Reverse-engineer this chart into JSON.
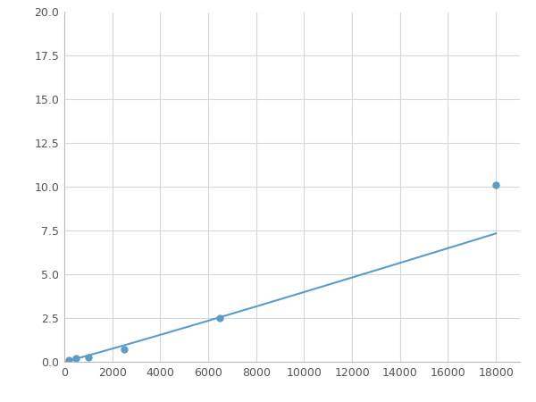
{
  "x_points": [
    200,
    500,
    1000,
    2500,
    6500,
    18000
  ],
  "y_points": [
    0.1,
    0.18,
    0.25,
    0.7,
    2.5,
    10.1
  ],
  "xlim": [
    0,
    19000
  ],
  "ylim": [
    0,
    20.0
  ],
  "xticks": [
    0,
    2000,
    4000,
    6000,
    8000,
    10000,
    12000,
    14000,
    16000,
    18000
  ],
  "yticks": [
    0.0,
    2.5,
    5.0,
    7.5,
    10.0,
    12.5,
    15.0,
    17.5,
    20.0
  ],
  "line_color": "#5b9dc8",
  "marker_color": "#5b9dc8",
  "marker_size": 5,
  "linewidth": 1.5,
  "background_color": "#ffffff",
  "grid_color": "#d0d8e0",
  "figsize": [
    6.0,
    4.5
  ],
  "dpi": 100
}
